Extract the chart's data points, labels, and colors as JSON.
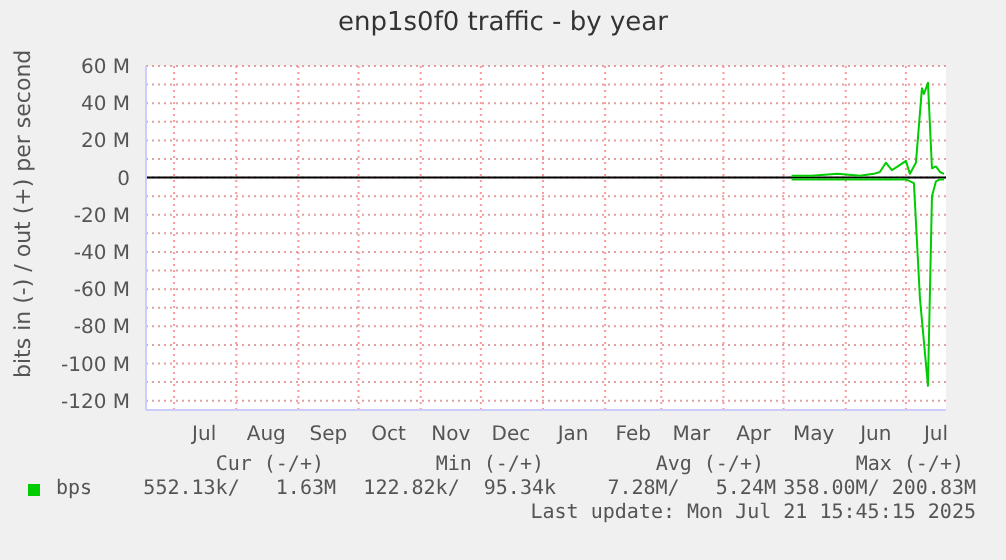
{
  "chart_data": {
    "type": "line",
    "title": "enp1s0f0 traffic - by year",
    "ylabel": "bits in (-) / out (+) per second",
    "xlim": [
      "2024-06-17",
      "2025-07-21"
    ],
    "xticks": [
      {
        "value": "2024-07-01",
        "label": null
      },
      {
        "value": "2024-08-01",
        "label": null
      },
      {
        "value": "2024-09-01",
        "label": null
      },
      {
        "value": "2024-10-01",
        "label": null
      },
      {
        "value": "2024-11-01",
        "label": null
      },
      {
        "value": "2024-12-01",
        "label": null
      },
      {
        "value": "2025-01-01",
        "label": null
      },
      {
        "value": "2025-02-01",
        "label": null
      },
      {
        "value": "2025-03-01",
        "label": null
      },
      {
        "value": "2025-04-01",
        "label": null
      },
      {
        "value": "2025-05-01",
        "label": null
      },
      {
        "value": "2025-06-01",
        "label": null
      },
      {
        "value": "2025-07-01",
        "label": null
      },
      {
        "value": "2024-07-16",
        "label": "Jul"
      },
      {
        "value": "2024-08-16",
        "label": "Aug"
      },
      {
        "value": "2024-09-16",
        "label": "Sep"
      },
      {
        "value": "2024-10-16",
        "label": "Oct"
      },
      {
        "value": "2024-11-16",
        "label": "Nov"
      },
      {
        "value": "2024-12-16",
        "label": "Dec"
      },
      {
        "value": "2025-01-16",
        "label": "Jan"
      },
      {
        "value": "2025-02-15",
        "label": "Feb"
      },
      {
        "value": "2025-03-16",
        "label": "Mar"
      },
      {
        "value": "2025-04-16",
        "label": "Apr"
      },
      {
        "value": "2025-05-16",
        "label": "May"
      },
      {
        "value": "2025-06-16",
        "label": "Jun"
      },
      {
        "value": "2025-07-16",
        "label": "Jul"
      }
    ],
    "ylim": [
      -125,
      60
    ],
    "yticks": [
      {
        "value": 60,
        "label": "60 M"
      },
      {
        "value": 50,
        "label": null
      },
      {
        "value": 40,
        "label": "40 M"
      },
      {
        "value": 30,
        "label": null
      },
      {
        "value": 20,
        "label": "20 M"
      },
      {
        "value": 10,
        "label": null
      },
      {
        "value": 0,
        "label": "0"
      },
      {
        "value": -10,
        "label": null
      },
      {
        "value": -20,
        "label": "-20 M"
      },
      {
        "value": -30,
        "label": null
      },
      {
        "value": -40,
        "label": "-40 M"
      },
      {
        "value": -50,
        "label": null
      },
      {
        "value": -60,
        "label": "-60 M"
      },
      {
        "value": -70,
        "label": null
      },
      {
        "value": -80,
        "label": "-80 M"
      },
      {
        "value": -90,
        "label": null
      },
      {
        "value": -100,
        "label": "-100 M"
      },
      {
        "value": -110,
        "label": null
      },
      {
        "value": -120,
        "label": "-120 M"
      }
    ],
    "grid": true,
    "legend": "bottom",
    "marker": "none",
    "line_style": "solid",
    "ref_lines": [
      {
        "axis": "y",
        "value": 0,
        "color": "#000000",
        "line_style": "solid"
      }
    ],
    "series": [
      {
        "name": "bps",
        "color": "#00cc00",
        "x": [
          "2025-05-05",
          "2025-05-15",
          "2025-05-28",
          "2025-06-08",
          "2025-06-15",
          "2025-06-18",
          "2025-06-21",
          "2025-06-24",
          "2025-06-27",
          "2025-07-01",
          "2025-07-03",
          "2025-07-06",
          "2025-07-09",
          "2025-07-10",
          "2025-07-12",
          "2025-07-14",
          "2025-07-16",
          "2025-07-18",
          "2025-07-20"
        ],
        "values": [
          1,
          1,
          2,
          1,
          2,
          3,
          8,
          4,
          6,
          9,
          2,
          8,
          48,
          45,
          51,
          5,
          6,
          3,
          2
        ]
      },
      {
        "color": "#00cc00",
        "x": [
          "2025-05-05",
          "2025-05-15",
          "2025-06-01",
          "2025-06-15",
          "2025-06-25",
          "2025-07-01",
          "2025-07-05",
          "2025-07-08",
          "2025-07-12",
          "2025-07-14",
          "2025-07-16",
          "2025-07-18",
          "2025-07-20"
        ],
        "values": [
          -1,
          -1,
          -1,
          -1,
          -1,
          -1,
          -3,
          -65,
          -112,
          -10,
          -2,
          -1,
          -1
        ]
      }
    ],
    "annotations": [
      "Cur (-/+)",
      "Min (-/+)",
      "Avg (-/+)",
      "Max (-/+)",
      "552.13k/   1.63M",
      "122.82k/  95.34k",
      "7.28M/   5.24M",
      "358.00M/ 200.83M",
      "Last update: Mon Jul 21 15:45:15 2025"
    ]
  }
}
